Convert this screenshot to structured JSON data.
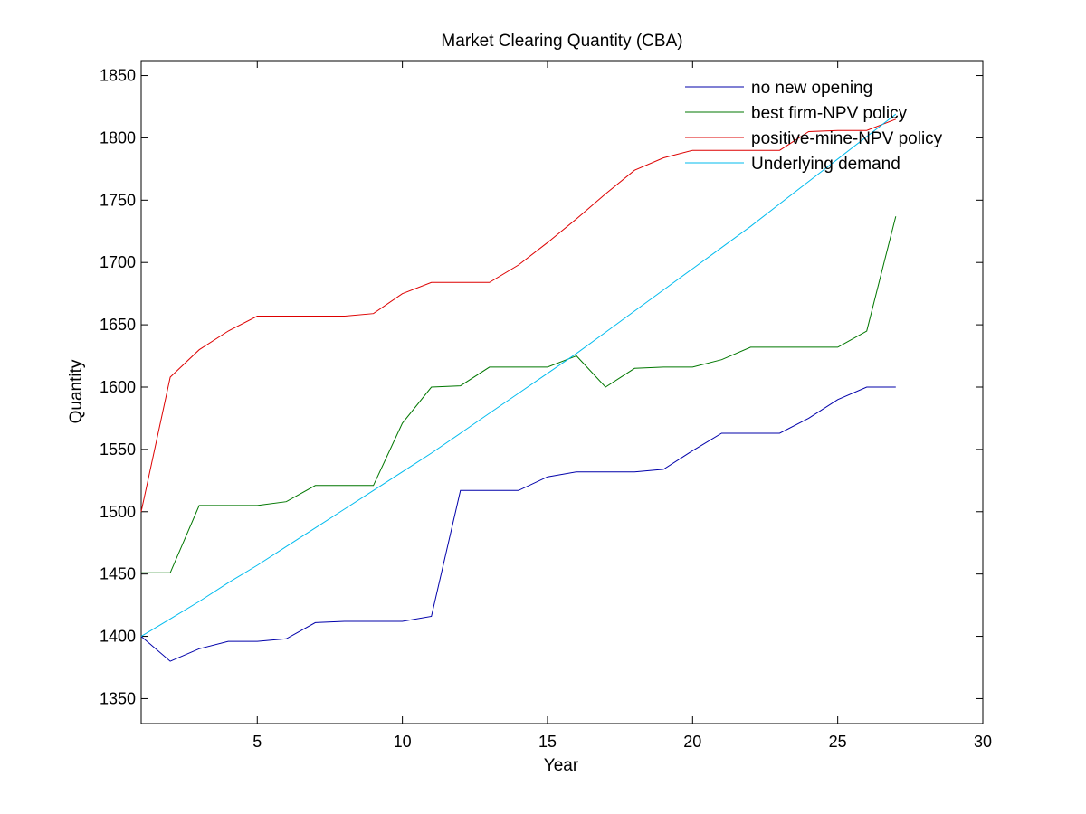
{
  "chart_data": {
    "type": "line",
    "title": "Market Clearing Quantity (CBA)",
    "xlabel": "Year",
    "ylabel": "Quantity",
    "xlim": [
      1,
      30
    ],
    "ylim": [
      1330,
      1862
    ],
    "xticks": [
      5,
      10,
      15,
      20,
      25,
      30
    ],
    "yticks": [
      1350,
      1400,
      1450,
      1500,
      1550,
      1600,
      1650,
      1700,
      1750,
      1800,
      1850
    ],
    "grid": false,
    "legend_position": "top-right",
    "x": [
      1,
      2,
      3,
      4,
      5,
      6,
      7,
      8,
      9,
      10,
      11,
      12,
      13,
      14,
      15,
      16,
      17,
      18,
      19,
      20,
      21,
      22,
      23,
      24,
      25,
      26,
      27
    ],
    "series": [
      {
        "name": "no new opening",
        "color": "#0000aa",
        "values": [
          1400,
          1380,
          1390,
          1396,
          1396,
          1398,
          1411,
          1412,
          1412,
          1412,
          1416,
          1517,
          1517,
          1517,
          1528,
          1532,
          1532,
          1532,
          1534,
          1549,
          1563,
          1563,
          1563,
          1575,
          1590,
          1600,
          1600
        ]
      },
      {
        "name": "best firm-NPV policy",
        "color": "#007700",
        "values": [
          1451,
          1451,
          1505,
          1505,
          1505,
          1508,
          1521,
          1521,
          1521,
          1571,
          1600,
          1601,
          1616,
          1616,
          1616,
          1625,
          1600,
          1615,
          1616,
          1616,
          1622,
          1632,
          1632,
          1632,
          1632,
          1645,
          1737
        ]
      },
      {
        "name": "positive-mine-NPV policy",
        "color": "#dd0000",
        "values": [
          1500,
          1608,
          1630,
          1645,
          1657,
          1657,
          1657,
          1657,
          1659,
          1675,
          1684,
          1684,
          1684,
          1698,
          1716,
          1735,
          1755,
          1774,
          1784,
          1790,
          1790,
          1790,
          1790,
          1805,
          1806,
          1806,
          1815
        ]
      },
      {
        "name": "Underlying demand",
        "color": "#00bbee",
        "values": [
          1400,
          1414,
          1428,
          1443,
          1457,
          1472,
          1487,
          1502,
          1517,
          1532,
          1547,
          1563,
          1579,
          1595,
          1611,
          1627,
          1644,
          1661,
          1678,
          1695,
          1712,
          1729,
          1747,
          1765,
          1783,
          1801,
          1819
        ]
      }
    ]
  }
}
